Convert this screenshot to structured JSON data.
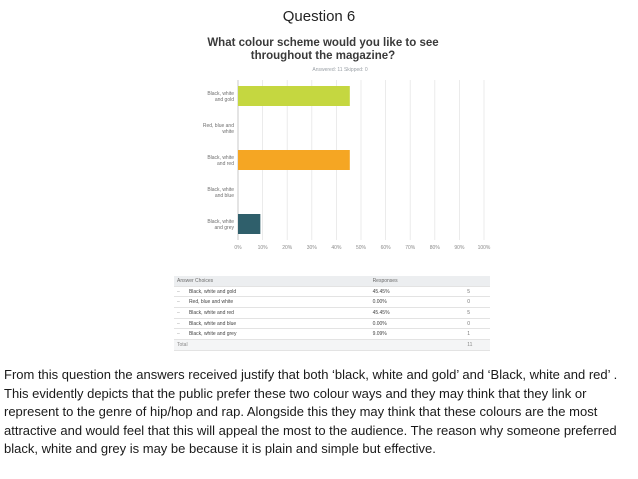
{
  "slide": {
    "title": "Question 6",
    "body": "From this question the answers received justify that both ‘black, white and gold’ and ‘Black, white and red’ . This evidently depicts that the public prefer these two colour ways and they may think that they link or represent to the genre of hip/hop and rap. Alongside this they may think that these colours are the most attractive and would feel that this will appeal the most to the audience. The reason why someone preferred black, white and grey is may be because it is plain and simple but effective."
  },
  "survey": {
    "question": "What colour scheme would you like to see throughout the magazine?",
    "meta": "Answered: 11   Skipped: 0"
  },
  "chart_data": {
    "type": "bar",
    "orientation": "horizontal",
    "categories": [
      "Black, white and gold",
      "Red, blue and white",
      "Black, white and red",
      "Black, white and blue",
      "Black, white and grey"
    ],
    "category_lines": [
      [
        "Black, white",
        "and gold"
      ],
      [
        "Red, blue and",
        "white"
      ],
      [
        "Black, white",
        "and red"
      ],
      [
        "Black, white",
        "and blue"
      ],
      [
        "Black, white",
        "and grey"
      ]
    ],
    "values": [
      45.45,
      0,
      45.45,
      0,
      9.09
    ],
    "colors": [
      "#c5d740",
      "#cccccc",
      "#f5a623",
      "#cccccc",
      "#2f5f6b"
    ],
    "xlim": [
      0,
      100
    ],
    "xticks": [
      "0%",
      "10%",
      "20%",
      "30%",
      "40%",
      "50%",
      "60%",
      "70%",
      "80%",
      "90%",
      "100%"
    ],
    "grid": true
  },
  "table": {
    "headers": {
      "choice": "Answer Choices",
      "responses": "Responses"
    },
    "rows": [
      {
        "expander": "–",
        "choice": "Black, white and gold",
        "pct": "45.45%",
        "count": "5"
      },
      {
        "expander": "–",
        "choice": "Red, blue and white",
        "pct": "0.00%",
        "count": "0"
      },
      {
        "expander": "–",
        "choice": "Black, white and red",
        "pct": "45.45%",
        "count": "5"
      },
      {
        "expander": "–",
        "choice": "Black, white and blue",
        "pct": "0.00%",
        "count": "0"
      },
      {
        "expander": "–",
        "choice": "Black, white and grey",
        "pct": "9.09%",
        "count": "1"
      }
    ],
    "total_label": "Total",
    "total_value": "11"
  }
}
